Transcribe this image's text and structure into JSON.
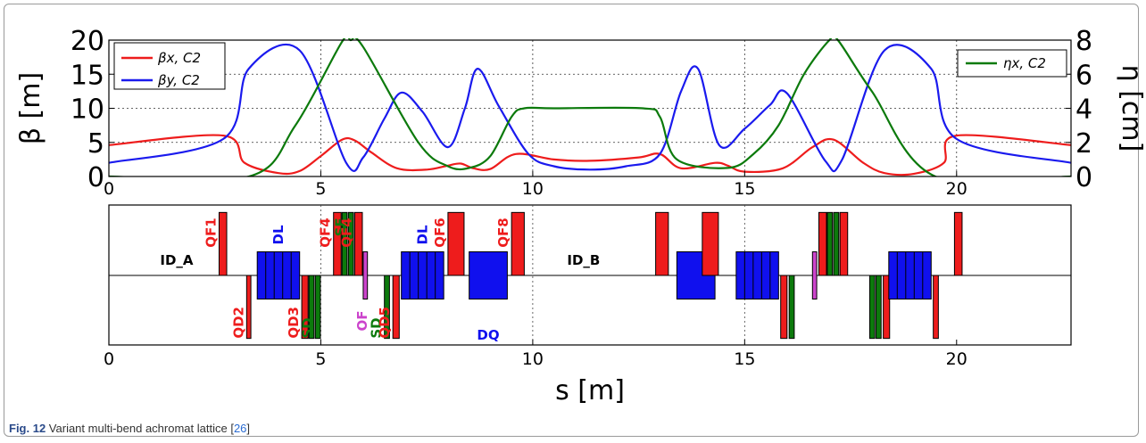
{
  "caption": {
    "label": "Fig. 12",
    "text": " Variant multi-bend achromat lattice [",
    "ref": "26",
    "end": "]"
  },
  "colors": {
    "beta_x": "#ee1c1c",
    "beta_y": "#1a1aee",
    "eta": "#0c7a0c",
    "quad": "#ee1c1c",
    "bend": "#1010ee",
    "sext": "#0c7a0c",
    "oct": "#cc44cc"
  },
  "chart_data": [
    {
      "type": "line",
      "xlim": [
        0,
        22.7
      ],
      "ylim_left": [
        0,
        20
      ],
      "ylim_right": [
        0,
        8
      ],
      "yticks_left": [
        "0",
        "5",
        "10",
        "15",
        "20"
      ],
      "yticks_right": [
        "0",
        "2",
        "4",
        "6",
        "8"
      ],
      "xticks": [
        "0",
        "5",
        "10",
        "15",
        "20"
      ],
      "ylabel_left": "β [m]",
      "ylabel_right": "η [cm]",
      "grid": true,
      "legend_left": "upper-left",
      "legend_right": "upper-right",
      "series": [
        {
          "name": "βx, C2",
          "axis": "left",
          "color": "#ee1c1c",
          "x": [
            0,
            2.7,
            3.2,
            4.0,
            4.5,
            5.0,
            5.5,
            5.8,
            6.2,
            6.8,
            7.5,
            8.0,
            8.3,
            8.6,
            9.0,
            9.6,
            10.5,
            11.35,
            12.5,
            13.0,
            13.5,
            14.3,
            14.6,
            15.0,
            15.9,
            16.6,
            17.1,
            17.8,
            18.3,
            19.0,
            19.7,
            20.0,
            22.7
          ],
          "y": [
            4.6,
            6.0,
            2.0,
            0.5,
            0.8,
            3.0,
            5.4,
            5.3,
            3.5,
            1.2,
            1.0,
            1.6,
            1.9,
            1.2,
            1.1,
            3.3,
            2.5,
            2.3,
            2.8,
            3.3,
            1.2,
            2.0,
            1.6,
            0.7,
            1.2,
            4.3,
            5.4,
            2.0,
            0.5,
            0.4,
            2.0,
            6.0,
            4.6
          ]
        },
        {
          "name": "βy, C2",
          "axis": "left",
          "color": "#1a1aee",
          "x": [
            0,
            2.7,
            3.3,
            4.5,
            5.6,
            6.0,
            6.5,
            6.9,
            7.4,
            8.0,
            8.4,
            8.7,
            9.2,
            9.9,
            10.5,
            11.35,
            12.2,
            13.0,
            13.5,
            13.9,
            14.4,
            15.0,
            15.6,
            16.0,
            16.9,
            17.3,
            18.3,
            19.4,
            20.0,
            22.7
          ],
          "y": [
            2.0,
            5.5,
            15.8,
            18.5,
            2.0,
            2.8,
            8.5,
            12.3,
            9.5,
            4.3,
            10.0,
            15.8,
            10.3,
            3.3,
            1.5,
            1.0,
            1.5,
            3.3,
            12.5,
            15.8,
            4.6,
            7.0,
            10.5,
            12.2,
            2.3,
            2.5,
            18.5,
            15.8,
            5.5,
            2.0
          ]
        },
        {
          "name": "ηx, C2",
          "axis": "right",
          "color": "#0c7a0c",
          "x": [
            0,
            3.3,
            4.4,
            5.5,
            5.7,
            6.0,
            7.3,
            8.0,
            8.5,
            9.0,
            9.5,
            9.8,
            10.5,
            12.6,
            13.0,
            13.4,
            14.6,
            15.2,
            15.8,
            16.4,
            17.0,
            17.2,
            18.0,
            19.5,
            22.7
          ],
          "y": [
            0,
            0,
            3.0,
            7.9,
            8.0,
            7.6,
            2.0,
            0.6,
            0.5,
            1.2,
            3.5,
            4.0,
            4.0,
            4.0,
            3.5,
            1.0,
            0.5,
            1.3,
            3.0,
            6.0,
            8.0,
            8.0,
            5.0,
            0,
            0
          ]
        }
      ]
    },
    {
      "type": "lattice",
      "xlim": [
        0,
        22.7
      ],
      "xticks": [
        "0",
        "5",
        "10",
        "15",
        "20"
      ],
      "xlabel": "s [m]",
      "section_labels": [
        {
          "text": "ID_A",
          "s": 1.6
        },
        {
          "text": "ID_B",
          "s": 11.2
        }
      ],
      "elements": [
        {
          "kind": "quad",
          "s": 2.6,
          "w": 0.18,
          "side": "up",
          "h": 0.9,
          "label": "QF1"
        },
        {
          "kind": "quad",
          "s": 3.25,
          "w": 0.1,
          "side": "down",
          "h": 0.9,
          "label": "QD2"
        },
        {
          "kind": "bend",
          "s": 3.5,
          "w": 1.0,
          "side": "both",
          "h": 0.45,
          "segments": 5,
          "label": "DL"
        },
        {
          "kind": "quad",
          "s": 4.55,
          "w": 0.15,
          "side": "down",
          "h": 0.9,
          "label": "QD3"
        },
        {
          "kind": "sext",
          "s": 4.72,
          "w": 0.12,
          "side": "down",
          "h": 0.9
        },
        {
          "kind": "sext",
          "s": 4.87,
          "w": 0.12,
          "side": "down",
          "h": 0.9,
          "label": "SD"
        },
        {
          "kind": "quad",
          "s": 5.3,
          "w": 0.18,
          "side": "up",
          "h": 0.9,
          "label": "QF4"
        },
        {
          "kind": "sext",
          "s": 5.5,
          "w": 0.12,
          "side": "up",
          "h": 0.9
        },
        {
          "kind": "sext",
          "s": 5.65,
          "w": 0.12,
          "side": "up",
          "h": 0.9,
          "label": "SF"
        },
        {
          "kind": "quad",
          "s": 5.8,
          "w": 0.18,
          "side": "up",
          "h": 0.9,
          "label": "QF4"
        },
        {
          "kind": "oct",
          "s": 6.0,
          "w": 0.1,
          "side": "both",
          "h": 0.45,
          "label": "OF"
        },
        {
          "kind": "sext",
          "s": 6.5,
          "w": 0.12,
          "side": "down",
          "h": 0.9,
          "label": "SD"
        },
        {
          "kind": "quad",
          "s": 6.7,
          "w": 0.15,
          "side": "down",
          "h": 0.9,
          "label": "QD5"
        },
        {
          "kind": "bend",
          "s": 6.9,
          "w": 1.0,
          "side": "both",
          "h": 0.45,
          "segments": 5,
          "label": "DL"
        },
        {
          "kind": "quad",
          "s": 8.0,
          "w": 0.38,
          "side": "up",
          "h": 0.9,
          "label": "QF6"
        },
        {
          "kind": "bend",
          "s": 8.5,
          "w": 0.9,
          "side": "both",
          "h": 0.45,
          "segments": 1,
          "label": "DQ"
        },
        {
          "kind": "quad",
          "s": 9.5,
          "w": 0.3,
          "side": "up",
          "h": 0.9,
          "label": "QF8"
        },
        {
          "kind": "quad",
          "s": 12.9,
          "w": 0.3,
          "side": "up",
          "h": 0.9
        },
        {
          "kind": "bend",
          "s": 13.4,
          "w": 0.9,
          "side": "both",
          "h": 0.45,
          "segments": 1
        },
        {
          "kind": "quad",
          "s": 14.0,
          "w": 0.38,
          "side": "up",
          "h": 0.9
        },
        {
          "kind": "bend",
          "s": 14.8,
          "w": 1.0,
          "side": "both",
          "h": 0.45,
          "segments": 5
        },
        {
          "kind": "quad",
          "s": 15.85,
          "w": 0.15,
          "side": "down",
          "h": 0.9
        },
        {
          "kind": "sext",
          "s": 16.05,
          "w": 0.12,
          "side": "down",
          "h": 0.9
        },
        {
          "kind": "oct",
          "s": 16.6,
          "w": 0.1,
          "side": "both",
          "h": 0.45
        },
        {
          "kind": "quad",
          "s": 16.75,
          "w": 0.18,
          "side": "up",
          "h": 0.9
        },
        {
          "kind": "sext",
          "s": 16.95,
          "w": 0.12,
          "side": "up",
          "h": 0.9
        },
        {
          "kind": "sext",
          "s": 17.1,
          "w": 0.12,
          "side": "up",
          "h": 0.9
        },
        {
          "kind": "quad",
          "s": 17.25,
          "w": 0.18,
          "side": "up",
          "h": 0.9
        },
        {
          "kind": "sext",
          "s": 17.95,
          "w": 0.12,
          "side": "down",
          "h": 0.9
        },
        {
          "kind": "sext",
          "s": 18.1,
          "w": 0.12,
          "side": "down",
          "h": 0.9
        },
        {
          "kind": "quad",
          "s": 18.27,
          "w": 0.15,
          "side": "down",
          "h": 0.9
        },
        {
          "kind": "bend",
          "s": 18.4,
          "w": 1.0,
          "side": "both",
          "h": 0.45,
          "segments": 5
        },
        {
          "kind": "quad",
          "s": 19.45,
          "w": 0.12,
          "side": "down",
          "h": 0.9
        },
        {
          "kind": "quad",
          "s": 19.95,
          "w": 0.18,
          "side": "up",
          "h": 0.9
        }
      ]
    }
  ]
}
